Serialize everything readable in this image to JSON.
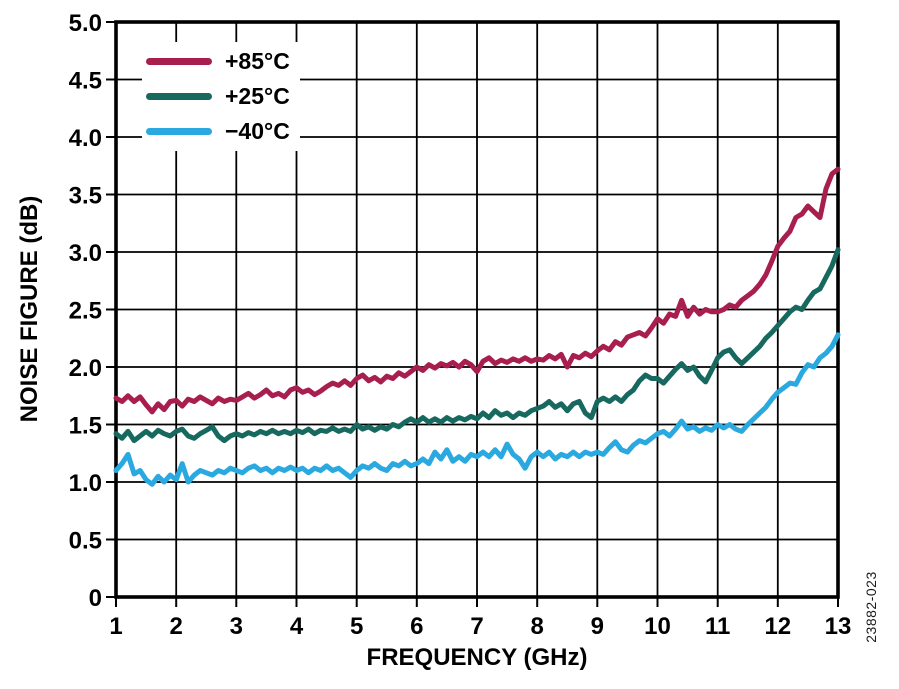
{
  "figure": {
    "watermark": "23882-023",
    "background": "#ffffff",
    "grid_color": "#000000"
  },
  "chart_data": {
    "type": "line",
    "title": "",
    "xlabel": "FREQUENCY (GHz)",
    "ylabel": "NOISE FIGURE (dB)",
    "xlim": [
      1,
      13
    ],
    "ylim": [
      0,
      5
    ],
    "grid": true,
    "legend_position": "top-left",
    "x_ticks": [
      1,
      2,
      3,
      4,
      5,
      6,
      7,
      8,
      9,
      10,
      11,
      12,
      13
    ],
    "x_tick_labels": [
      "1",
      "2",
      "3",
      "4",
      "5",
      "6",
      "7",
      "8",
      "9",
      "10",
      "11",
      "12",
      "13"
    ],
    "y_ticks": [
      0,
      0.5,
      1.0,
      1.5,
      2.0,
      2.5,
      3.0,
      3.5,
      4.0,
      4.5,
      5.0
    ],
    "y_tick_labels": [
      "0",
      "0.5",
      "1.0",
      "1.5",
      "2.0",
      "2.5",
      "3.0",
      "3.5",
      "4.0",
      "4.5",
      "5.0"
    ],
    "x_start": 1.0,
    "x_step": 0.1,
    "series": [
      {
        "name": "+85°C",
        "color": "#A81E4F",
        "values": [
          1.73,
          1.7,
          1.75,
          1.7,
          1.74,
          1.67,
          1.61,
          1.68,
          1.63,
          1.7,
          1.71,
          1.66,
          1.72,
          1.7,
          1.74,
          1.71,
          1.68,
          1.73,
          1.7,
          1.72,
          1.71,
          1.74,
          1.77,
          1.73,
          1.76,
          1.8,
          1.75,
          1.77,
          1.74,
          1.8,
          1.82,
          1.78,
          1.8,
          1.76,
          1.79,
          1.83,
          1.86,
          1.84,
          1.88,
          1.84,
          1.9,
          1.93,
          1.88,
          1.91,
          1.87,
          1.92,
          1.9,
          1.95,
          1.92,
          1.96,
          2.0,
          1.97,
          2.02,
          1.99,
          2.03,
          2.01,
          2.04,
          2.0,
          2.05,
          2.02,
          1.96,
          2.05,
          2.08,
          2.03,
          2.06,
          2.04,
          2.07,
          2.05,
          2.08,
          2.05,
          2.07,
          2.06,
          2.1,
          2.07,
          2.11,
          2.0,
          2.1,
          2.08,
          2.12,
          2.09,
          2.14,
          2.18,
          2.15,
          2.22,
          2.19,
          2.26,
          2.28,
          2.3,
          2.27,
          2.34,
          2.42,
          2.38,
          2.46,
          2.44,
          2.58,
          2.44,
          2.52,
          2.46,
          2.5,
          2.48,
          2.48,
          2.5,
          2.54,
          2.52,
          2.58,
          2.62,
          2.66,
          2.72,
          2.8,
          2.92,
          3.05,
          3.12,
          3.18,
          3.3,
          3.33,
          3.4,
          3.35,
          3.3,
          3.55,
          3.68,
          3.72
        ]
      },
      {
        "name": "+25°C",
        "color": "#17695F",
        "values": [
          1.42,
          1.38,
          1.44,
          1.36,
          1.4,
          1.44,
          1.4,
          1.45,
          1.42,
          1.4,
          1.44,
          1.46,
          1.4,
          1.38,
          1.42,
          1.45,
          1.48,
          1.4,
          1.36,
          1.4,
          1.42,
          1.4,
          1.43,
          1.41,
          1.44,
          1.42,
          1.45,
          1.42,
          1.44,
          1.42,
          1.45,
          1.43,
          1.46,
          1.42,
          1.45,
          1.44,
          1.47,
          1.44,
          1.46,
          1.44,
          1.5,
          1.46,
          1.48,
          1.45,
          1.48,
          1.46,
          1.5,
          1.48,
          1.52,
          1.55,
          1.52,
          1.56,
          1.52,
          1.55,
          1.52,
          1.56,
          1.53,
          1.56,
          1.54,
          1.57,
          1.55,
          1.6,
          1.56,
          1.62,
          1.58,
          1.6,
          1.56,
          1.6,
          1.58,
          1.62,
          1.64,
          1.66,
          1.7,
          1.65,
          1.68,
          1.62,
          1.68,
          1.7,
          1.6,
          1.56,
          1.7,
          1.73,
          1.7,
          1.74,
          1.7,
          1.76,
          1.8,
          1.88,
          1.93,
          1.9,
          1.9,
          1.86,
          1.92,
          1.98,
          2.03,
          1.97,
          2.0,
          1.92,
          1.87,
          1.97,
          2.08,
          2.13,
          2.15,
          2.08,
          2.03,
          2.08,
          2.13,
          2.18,
          2.25,
          2.3,
          2.36,
          2.42,
          2.48,
          2.52,
          2.5,
          2.58,
          2.65,
          2.68,
          2.78,
          2.88,
          3.02
        ]
      },
      {
        "name": "−40°C",
        "color": "#29A9E0",
        "values": [
          1.1,
          1.16,
          1.24,
          1.07,
          1.1,
          1.02,
          0.98,
          1.05,
          1.0,
          1.06,
          1.02,
          1.16,
          1.0,
          1.06,
          1.1,
          1.08,
          1.06,
          1.1,
          1.08,
          1.12,
          1.1,
          1.08,
          1.12,
          1.14,
          1.1,
          1.12,
          1.08,
          1.12,
          1.1,
          1.13,
          1.1,
          1.12,
          1.08,
          1.12,
          1.1,
          1.14,
          1.1,
          1.12,
          1.08,
          1.04,
          1.1,
          1.14,
          1.12,
          1.16,
          1.12,
          1.1,
          1.16,
          1.14,
          1.18,
          1.14,
          1.16,
          1.2,
          1.16,
          1.26,
          1.2,
          1.28,
          1.18,
          1.22,
          1.18,
          1.24,
          1.22,
          1.26,
          1.22,
          1.28,
          1.22,
          1.33,
          1.24,
          1.2,
          1.12,
          1.22,
          1.26,
          1.22,
          1.26,
          1.2,
          1.24,
          1.22,
          1.26,
          1.22,
          1.26,
          1.24,
          1.26,
          1.24,
          1.3,
          1.35,
          1.28,
          1.26,
          1.32,
          1.36,
          1.34,
          1.38,
          1.42,
          1.44,
          1.4,
          1.46,
          1.53,
          1.46,
          1.48,
          1.44,
          1.47,
          1.45,
          1.5,
          1.47,
          1.5,
          1.46,
          1.44,
          1.5,
          1.55,
          1.6,
          1.65,
          1.72,
          1.78,
          1.82,
          1.86,
          1.85,
          1.95,
          2.02,
          2.0,
          2.08,
          2.12,
          2.18,
          2.28
        ]
      }
    ]
  }
}
